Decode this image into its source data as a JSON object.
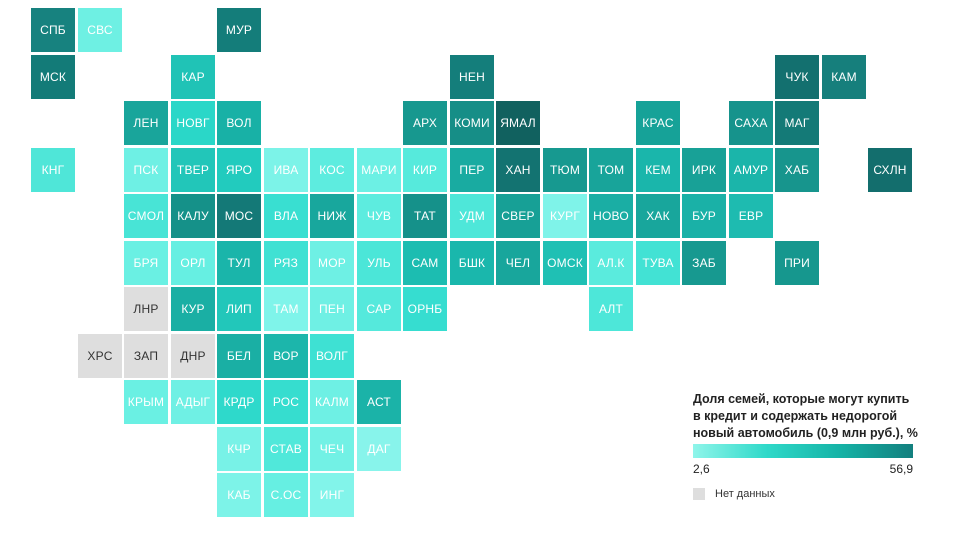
{
  "legend": {
    "title": "Доля семей, которые могут купить в кредит и содержать недорогой новый автомобиль (0,9 млн руб.), %",
    "min": "2,6",
    "max": "56,9",
    "no_data_label": "Нет данных",
    "no_data_color": "#dedede",
    "gradient": [
      "#8ff5ea",
      "#2fd9c9",
      "#15b3a6",
      "#137f7e"
    ]
  },
  "regions": [
    {
      "label": "СПБ",
      "row": 0,
      "col": 0,
      "color": "#17827f"
    },
    {
      "label": "СВС",
      "row": 0,
      "col": 1,
      "color": "#6ef0e3"
    },
    {
      "label": "МУР",
      "row": 0,
      "col": 4,
      "color": "#147d7a"
    },
    {
      "label": "МСК",
      "row": 1,
      "col": 0,
      "color": "#137b78"
    },
    {
      "label": "КАР",
      "row": 1,
      "col": 3,
      "color": "#20c3b6"
    },
    {
      "label": "НЕН",
      "row": 1,
      "col": 9,
      "color": "#147e7b"
    },
    {
      "label": "ЧУК",
      "row": 1,
      "col": 16,
      "color": "#13706f"
    },
    {
      "label": "КАМ",
      "row": 1,
      "col": 17,
      "color": "#167f7c"
    },
    {
      "label": "ЛЕН",
      "row": 2,
      "col": 2,
      "color": "#19a59b"
    },
    {
      "label": "НОВГ",
      "row": 2,
      "col": 3,
      "color": "#2ad7c8"
    },
    {
      "label": "ВОЛ",
      "row": 2,
      "col": 4,
      "color": "#18b1a6"
    },
    {
      "label": "АРХ",
      "row": 2,
      "col": 8,
      "color": "#17988f"
    },
    {
      "label": "КОМИ",
      "row": 2,
      "col": 9,
      "color": "#168e87"
    },
    {
      "label": "ЯМАЛ",
      "row": 2,
      "col": 10,
      "color": "#11615f"
    },
    {
      "label": "КРАС",
      "row": 2,
      "col": 13,
      "color": "#16a298"
    },
    {
      "label": "САХА",
      "row": 2,
      "col": 15,
      "color": "#16938c"
    },
    {
      "label": "МАГ",
      "row": 2,
      "col": 16,
      "color": "#147a77"
    },
    {
      "label": "КНГ",
      "row": 3,
      "col": 0,
      "color": "#4fe6d8"
    },
    {
      "label": "ПСК",
      "row": 3,
      "col": 2,
      "color": "#6ef0e4"
    },
    {
      "label": "ТВЕР",
      "row": 3,
      "col": 3,
      "color": "#22c6b9"
    },
    {
      "label": "ЯРО",
      "row": 3,
      "col": 4,
      "color": "#22cbbe"
    },
    {
      "label": "ИВА",
      "row": 3,
      "col": 5,
      "color": "#7cf3e8"
    },
    {
      "label": "КОС",
      "row": 3,
      "col": 6,
      "color": "#5decdf"
    },
    {
      "label": "МАРИ",
      "row": 3,
      "col": 7,
      "color": "#6cf0e4"
    },
    {
      "label": "КИР",
      "row": 3,
      "col": 8,
      "color": "#56eadc"
    },
    {
      "label": "ПЕР",
      "row": 3,
      "col": 9,
      "color": "#19aba1"
    },
    {
      "label": "ХАН",
      "row": 3,
      "col": 10,
      "color": "#137371"
    },
    {
      "label": "ТЮМ",
      "row": 3,
      "col": 11,
      "color": "#179990"
    },
    {
      "label": "ТОМ",
      "row": 3,
      "col": 12,
      "color": "#18a49a"
    },
    {
      "label": "КЕМ",
      "row": 3,
      "col": 13,
      "color": "#1ab6ab"
    },
    {
      "label": "ИРК",
      "row": 3,
      "col": 14,
      "color": "#18a197"
    },
    {
      "label": "АМУР",
      "row": 3,
      "col": 15,
      "color": "#1bb5aa"
    },
    {
      "label": "ХАБ",
      "row": 3,
      "col": 16,
      "color": "#17958d"
    },
    {
      "label": "СХЛН",
      "row": 3,
      "col": 18,
      "color": "#136e6d"
    },
    {
      "label": "СМОЛ",
      "row": 4,
      "col": 2,
      "color": "#48e4d6"
    },
    {
      "label": "КАЛУ",
      "row": 4,
      "col": 3,
      "color": "#159189"
    },
    {
      "label": "МОС",
      "row": 4,
      "col": 4,
      "color": "#147977"
    },
    {
      "label": "ВЛА",
      "row": 4,
      "col": 5,
      "color": "#39dfd1"
    },
    {
      "label": "НИЖ",
      "row": 4,
      "col": 6,
      "color": "#18a79d"
    },
    {
      "label": "ЧУВ",
      "row": 4,
      "col": 7,
      "color": "#5decdf"
    },
    {
      "label": "ТАТ",
      "row": 4,
      "col": 8,
      "color": "#15918a"
    },
    {
      "label": "УДМ",
      "row": 4,
      "col": 9,
      "color": "#4ee7d9"
    },
    {
      "label": "СВЕР",
      "row": 4,
      "col": 10,
      "color": "#17a096"
    },
    {
      "label": "КУРГ",
      "row": 4,
      "col": 11,
      "color": "#7ff3e9"
    },
    {
      "label": "НОВО",
      "row": 4,
      "col": 12,
      "color": "#1aaea4"
    },
    {
      "label": "ХАК",
      "row": 4,
      "col": 13,
      "color": "#18a69c"
    },
    {
      "label": "БУР",
      "row": 4,
      "col": 14,
      "color": "#1ab1a7"
    },
    {
      "label": "ЕВР",
      "row": 4,
      "col": 15,
      "color": "#1ebbb0"
    },
    {
      "label": "БРЯ",
      "row": 5,
      "col": 2,
      "color": "#6af0e3"
    },
    {
      "label": "ОРЛ",
      "row": 5,
      "col": 3,
      "color": "#66efe2"
    },
    {
      "label": "ТУЛ",
      "row": 5,
      "col": 4,
      "color": "#1ab5aa"
    },
    {
      "label": "РЯЗ",
      "row": 5,
      "col": 5,
      "color": "#40e1d3"
    },
    {
      "label": "МОР",
      "row": 5,
      "col": 6,
      "color": "#6ef0e4"
    },
    {
      "label": "УЛЬ",
      "row": 5,
      "col": 7,
      "color": "#4be6d8"
    },
    {
      "label": "САМ",
      "row": 5,
      "col": 8,
      "color": "#1cbdb1"
    },
    {
      "label": "БШК",
      "row": 5,
      "col": 9,
      "color": "#1ab7ac"
    },
    {
      "label": "ЧЕЛ",
      "row": 5,
      "col": 10,
      "color": "#18a69c"
    },
    {
      "label": "ОМСК",
      "row": 5,
      "col": 11,
      "color": "#1fc0b4"
    },
    {
      "label": "АЛ.К",
      "row": 5,
      "col": 12,
      "color": "#5aebdd"
    },
    {
      "label": "ТУВА",
      "row": 5,
      "col": 13,
      "color": "#42e2d4"
    },
    {
      "label": "ЗАБ",
      "row": 5,
      "col": 14,
      "color": "#179990"
    },
    {
      "label": "ПРИ",
      "row": 5,
      "col": 16,
      "color": "#16978e"
    },
    {
      "label": "ЛНР",
      "row": 6,
      "col": 2,
      "color": "#dedede",
      "dark": true
    },
    {
      "label": "КУР",
      "row": 6,
      "col": 3,
      "color": "#1aafa4"
    },
    {
      "label": "ЛИП",
      "row": 6,
      "col": 4,
      "color": "#22c7ba"
    },
    {
      "label": "ТАМ",
      "row": 6,
      "col": 5,
      "color": "#7ff4ea"
    },
    {
      "label": "ПЕН",
      "row": 6,
      "col": 6,
      "color": "#6ff0e4"
    },
    {
      "label": "САР",
      "row": 6,
      "col": 7,
      "color": "#55e9dc"
    },
    {
      "label": "ОРНБ",
      "row": 6,
      "col": 8,
      "color": "#36ddd0"
    },
    {
      "label": "АЛТ",
      "row": 6,
      "col": 12,
      "color": "#4de7d9"
    },
    {
      "label": "ХРС",
      "row": 7,
      "col": 1,
      "color": "#dedede",
      "dark": true
    },
    {
      "label": "ЗАП",
      "row": 7,
      "col": 2,
      "color": "#dedede",
      "dark": true
    },
    {
      "label": "ДНР",
      "row": 7,
      "col": 3,
      "color": "#dedede",
      "dark": true
    },
    {
      "label": "БЕЛ",
      "row": 7,
      "col": 4,
      "color": "#1aafa4"
    },
    {
      "label": "ВОР",
      "row": 7,
      "col": 5,
      "color": "#1cb6ab"
    },
    {
      "label": "ВОЛГ",
      "row": 7,
      "col": 6,
      "color": "#3ee1d3"
    },
    {
      "label": "КРЫМ",
      "row": 8,
      "col": 2,
      "color": "#6af0e3"
    },
    {
      "label": "АДЫГ",
      "row": 8,
      "col": 3,
      "color": "#6ff0e4"
    },
    {
      "label": "КРДР",
      "row": 8,
      "col": 4,
      "color": "#2ed9cb"
    },
    {
      "label": "РОС",
      "row": 8,
      "col": 5,
      "color": "#36ddcf"
    },
    {
      "label": "КАЛМ",
      "row": 8,
      "col": 6,
      "color": "#6ef0e4"
    },
    {
      "label": "АСТ",
      "row": 8,
      "col": 7,
      "color": "#1bb3a8"
    },
    {
      "label": "КЧР",
      "row": 9,
      "col": 4,
      "color": "#78f2e7"
    },
    {
      "label": "СТАВ",
      "row": 9,
      "col": 5,
      "color": "#50e8da"
    },
    {
      "label": "ЧЕЧ",
      "row": 9,
      "col": 6,
      "color": "#72f1e5"
    },
    {
      "label": "ДАГ",
      "row": 9,
      "col": 7,
      "color": "#88f4eb"
    },
    {
      "label": "КАБ",
      "row": 10,
      "col": 4,
      "color": "#7df3e8"
    },
    {
      "label": "С.ОС",
      "row": 10,
      "col": 5,
      "color": "#66efe2"
    },
    {
      "label": "ИНГ",
      "row": 10,
      "col": 6,
      "color": "#82f4ea"
    }
  ]
}
